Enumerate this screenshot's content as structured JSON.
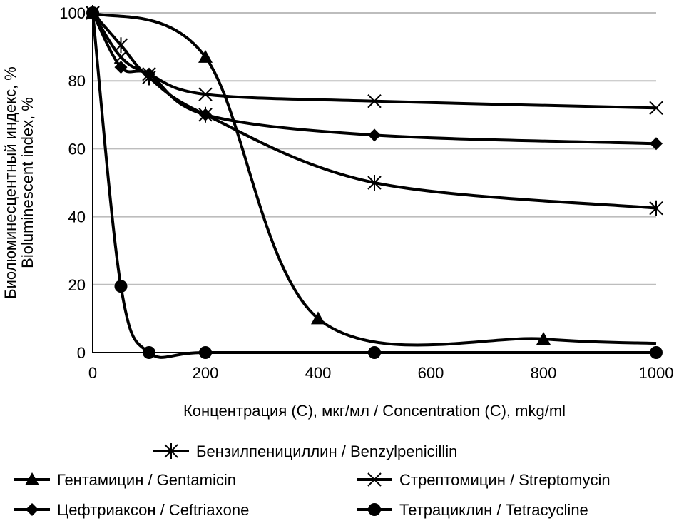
{
  "chart_data": {
    "type": "line",
    "xlabel": "Концентрация (C), мкг/мл / Concentration (C), mkg/ml",
    "ylabel_line1": "Биолюминесцентный индекс, %",
    "ylabel_line2": "Bioluminescent index, %",
    "xlim": [
      0,
      1000
    ],
    "ylim": [
      0,
      100
    ],
    "xticks": [
      "0",
      "200",
      "400",
      "600",
      "800",
      "1000"
    ],
    "yticks": [
      "0",
      "20",
      "40",
      "60",
      "80",
      "100"
    ],
    "grid": "horizontal",
    "legend_position": "bottom",
    "series": [
      {
        "name": "Бензилпенициллин / Benzylpenicillin",
        "marker": "asterisk",
        "x": [
          0,
          50,
          100,
          200,
          500,
          1000
        ],
        "y": [
          100,
          90.5,
          81,
          70,
          50,
          42.5
        ]
      },
      {
        "name": "Гентамицин / Gentamicin",
        "marker": "triangle",
        "x": [
          0,
          200,
          400,
          800,
          1000
        ],
        "y": [
          100,
          87,
          10,
          4,
          2.7
        ]
      },
      {
        "name": "Стрептомицин / Streptomycin",
        "marker": "x",
        "x": [
          0,
          50,
          100,
          200,
          500,
          1000
        ],
        "y": [
          100,
          87,
          82,
          76,
          74,
          72
        ]
      },
      {
        "name": "Цефтриаксон / Ceftriaxone",
        "marker": "diamond",
        "x": [
          0,
          50,
          100,
          200,
          500,
          1000
        ],
        "y": [
          100,
          84,
          82,
          70,
          64,
          61.5
        ]
      },
      {
        "name": "Тетрациклин / Tetracycline",
        "marker": "circle",
        "x": [
          0,
          50,
          100,
          200,
          500,
          1000
        ],
        "y": [
          100,
          19.5,
          0,
          0,
          0,
          0
        ]
      }
    ]
  }
}
